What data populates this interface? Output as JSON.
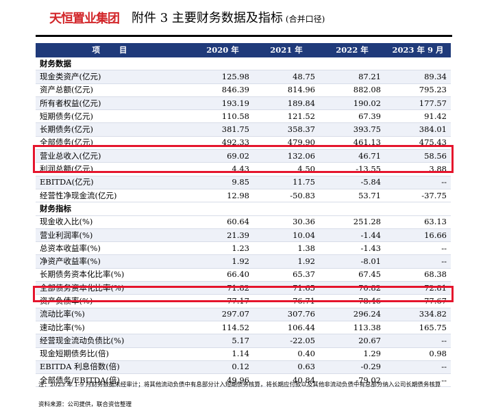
{
  "header": {
    "logo": "天恒置业集团",
    "title": "附件 3   主要财务数据及指标",
    "subtitle": "(合并口径)"
  },
  "table": {
    "columns": [
      "项 目",
      "2020 年",
      "2021 年",
      "2022 年",
      "2023 年 9 月"
    ],
    "rows": [
      {
        "type": "section",
        "label": "财务数据",
        "values": [
          "",
          "",
          "",
          ""
        ]
      },
      {
        "label": "现金类资产(亿元)",
        "values": [
          "125.98",
          "48.75",
          "87.21",
          "89.34"
        ]
      },
      {
        "label": "资产总额(亿元)",
        "values": [
          "846.39",
          "814.96",
          "882.08",
          "795.23"
        ]
      },
      {
        "label": "所有者权益(亿元)",
        "values": [
          "193.19",
          "189.84",
          "190.02",
          "177.57"
        ]
      },
      {
        "label": "短期债务(亿元)",
        "values": [
          "110.58",
          "121.52",
          "67.39",
          "91.42"
        ]
      },
      {
        "label": "长期债务(亿元)",
        "values": [
          "381.75",
          "358.37",
          "393.75",
          "384.01"
        ]
      },
      {
        "label": "全部债务(亿元)",
        "values": [
          "492.33",
          "479.90",
          "461.13",
          "475.43"
        ]
      },
      {
        "label": "营业总收入(亿元)",
        "values": [
          "69.02",
          "132.06",
          "46.71",
          "58.56"
        ]
      },
      {
        "label": "利润总额(亿元)",
        "values": [
          "4.43",
          "4.50",
          "-13.55",
          "3.88"
        ]
      },
      {
        "label": "EBITDA(亿元)",
        "values": [
          "9.85",
          "11.75",
          "-5.84",
          "--"
        ]
      },
      {
        "label": "经营性净现金流(亿元)",
        "values": [
          "12.98",
          "-50.83",
          "53.71",
          "-37.75"
        ]
      },
      {
        "type": "section",
        "label": "财务指标",
        "values": [
          "",
          "",
          "",
          ""
        ]
      },
      {
        "label": "现金收入比(%)",
        "values": [
          "60.64",
          "30.36",
          "251.28",
          "63.13"
        ]
      },
      {
        "label": "营业利润率(%)",
        "values": [
          "21.39",
          "10.04",
          "-1.44",
          "16.66"
        ]
      },
      {
        "label": "总资本收益率(%)",
        "values": [
          "1.23",
          "1.38",
          "-1.43",
          "--"
        ]
      },
      {
        "label": "净资产收益率(%)",
        "values": [
          "1.92",
          "1.92",
          "-8.01",
          "--"
        ]
      },
      {
        "label": "长期债务资本化比率(%)",
        "values": [
          "66.40",
          "65.37",
          "67.45",
          "68.38"
        ]
      },
      {
        "label": "全部债务资本化比率(%)",
        "values": [
          "71.82",
          "71.65",
          "70.82",
          "72.81"
        ]
      },
      {
        "label": "资产负债率(%)",
        "values": [
          "77.17",
          "76.71",
          "78.46",
          "77.67"
        ]
      },
      {
        "label": "流动比率(%)",
        "values": [
          "297.07",
          "307.76",
          "296.24",
          "334.82"
        ]
      },
      {
        "label": "速动比率(%)",
        "values": [
          "114.52",
          "106.44",
          "113.38",
          "165.75"
        ]
      },
      {
        "label": "经营现金流动负债比(%)",
        "values": [
          "5.17",
          "-22.05",
          "20.67",
          "--"
        ]
      },
      {
        "label": "现金短期债务比(倍)",
        "values": [
          "1.14",
          "0.40",
          "1.29",
          "0.98"
        ]
      },
      {
        "label": "EBITDA 利息倍数(倍)",
        "values": [
          "0.12",
          "0.63",
          "-0.29",
          "--"
        ]
      },
      {
        "label": "全部债务/EBITDA(倍)",
        "values": [
          "49.96",
          "40.84",
          "-79.02",
          "--"
        ]
      }
    ]
  },
  "footnote": "注：2023 年 1-9 月财务数据未经审计；将其他流动负债中有息部分计入短期债务核算，将长期应付款以及其他非流动负债中有息部分纳入公司长期债务核算",
  "source": "资料来源：公司提供，联合资信整理",
  "colors": {
    "header_bg": "#1f3a7a",
    "logo": "#d2262a",
    "highlight": "#e5142c"
  }
}
